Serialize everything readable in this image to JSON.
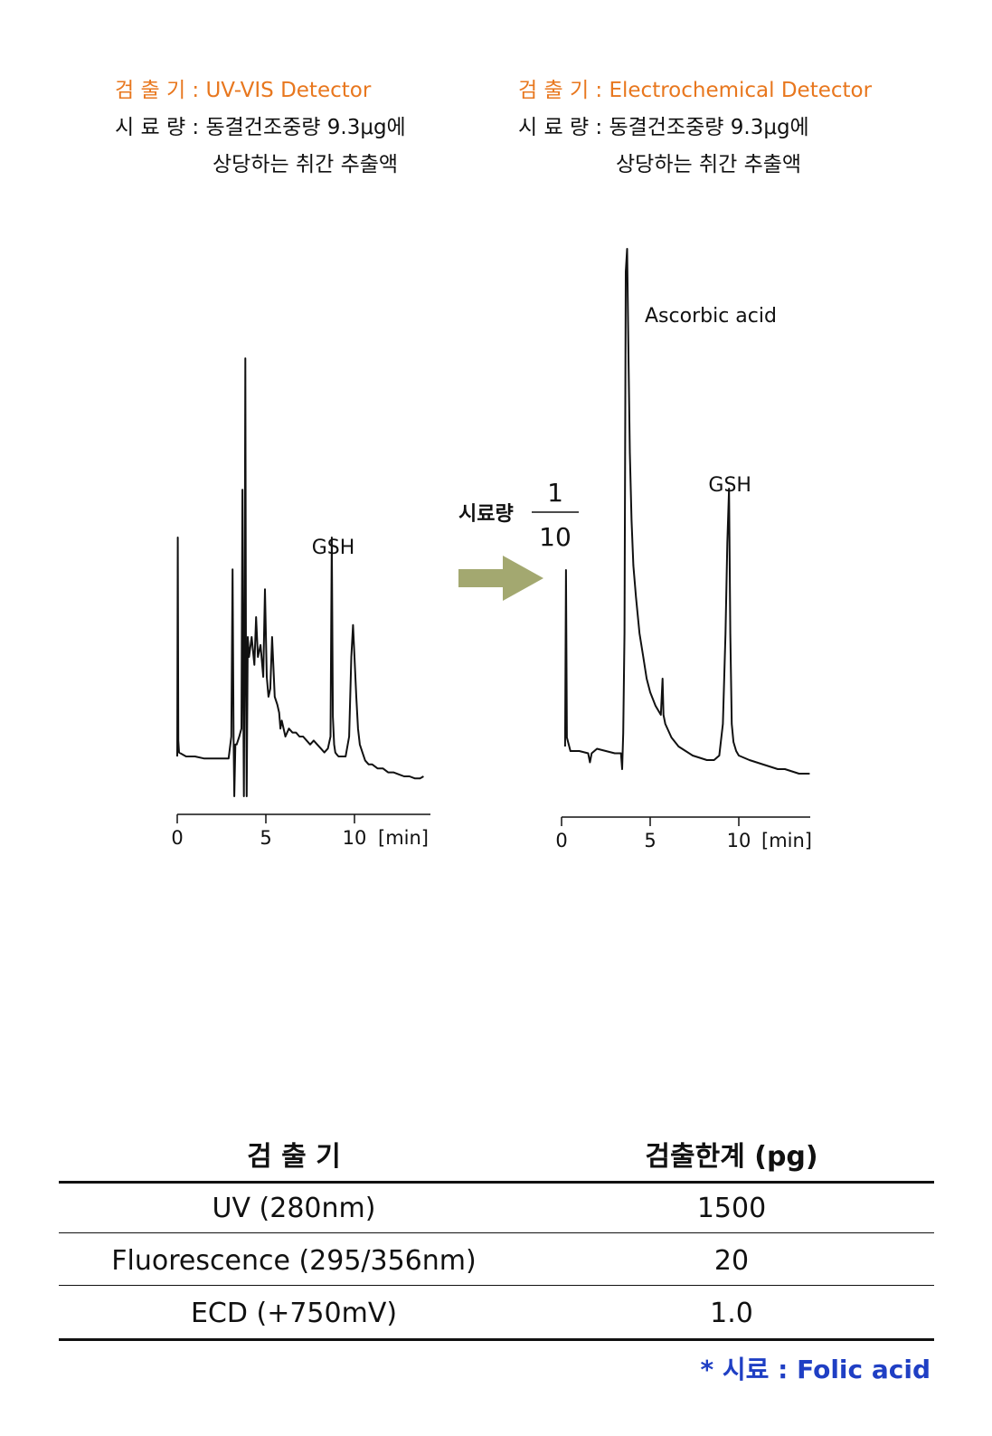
{
  "left_panel": {
    "detector_line": "검 출 기 : UV-VIS Detector",
    "sample_line1": "시 료 량 : 동결건조중량 9.3μg에",
    "sample_line2": "상당하는 취간 추출액"
  },
  "right_panel": {
    "detector_line": "검 출 기 : Electrochemical Detector",
    "sample_line1": "시 료 량 : 동결건조중량 9.3μg에",
    "sample_line2": "상당하는 취간 추출액"
  },
  "arrow_label": {
    "text": "시료량",
    "numerator": "1",
    "denominator": "10",
    "arrow_color": "#a3a870"
  },
  "chart_data": [
    {
      "type": "line",
      "detector": "UV-VIS Detector",
      "x_ticks": [
        "0",
        "5",
        "10"
      ],
      "x_unit": "[min]",
      "xlim": [
        0,
        14
      ],
      "annotations": [
        {
          "text": "GSH",
          "x": 8.8
        }
      ],
      "series": [
        {
          "x": [
            0.0,
            0.03,
            0.06,
            0.1,
            0.5,
            1,
            1.5,
            2,
            2.5,
            2.9,
            3.05,
            3.12,
            3.18,
            3.22,
            3.28,
            3.35,
            3.5,
            3.62,
            3.68,
            3.72,
            3.76,
            3.8,
            3.84,
            3.88,
            3.92,
            3.98,
            4.05,
            4.2,
            4.35,
            4.45,
            4.55,
            4.7,
            4.85,
            4.95,
            5.05,
            5.15,
            5.25,
            5.35,
            5.5,
            5.65,
            5.75,
            5.82,
            5.9,
            6.1,
            6.3,
            6.5,
            6.7,
            6.9,
            7.1,
            7.3,
            7.5,
            7.7,
            7.9,
            8.1,
            8.3,
            8.5,
            8.65,
            8.72,
            8.78,
            8.85,
            8.92,
            9.0,
            9.1,
            9.3,
            9.5,
            9.7,
            9.82,
            9.92,
            10.0,
            10.1,
            10.2,
            10.3,
            10.45,
            10.6,
            10.8,
            11,
            11.3,
            11.6,
            11.9,
            12.2,
            12.5,
            12.8,
            13.1,
            13.4,
            13.7,
            13.9
          ],
          "y": [
            0.05,
            0.6,
            0.09,
            0.06,
            0.05,
            0.05,
            0.045,
            0.045,
            0.045,
            0.045,
            0.1,
            0.52,
            0.1,
            -0.05,
            0.08,
            0.08,
            0.1,
            0.12,
            0.72,
            0.25,
            -0.05,
            0.35,
            1.05,
            0.3,
            -0.05,
            0.35,
            0.3,
            0.35,
            0.28,
            0.4,
            0.3,
            0.33,
            0.25,
            0.47,
            0.25,
            0.2,
            0.22,
            0.35,
            0.2,
            0.18,
            0.16,
            0.12,
            0.14,
            0.1,
            0.12,
            0.11,
            0.11,
            0.1,
            0.1,
            0.09,
            0.08,
            0.09,
            0.08,
            0.07,
            0.06,
            0.07,
            0.1,
            0.6,
            0.15,
            0.08,
            0.06,
            0.055,
            0.05,
            0.05,
            0.05,
            0.1,
            0.3,
            0.38,
            0.3,
            0.2,
            0.12,
            0.08,
            0.06,
            0.04,
            0.03,
            0.03,
            0.02,
            0.02,
            0.01,
            0.01,
            0.005,
            0.0,
            0.0,
            -0.005,
            -0.005,
            0.0
          ]
        }
      ]
    },
    {
      "type": "line",
      "detector": "Electrochemical Detector",
      "x_ticks": [
        "0",
        "5",
        "10"
      ],
      "x_unit": "[min]",
      "xlim": [
        0,
        14
      ],
      "annotations": [
        {
          "text": "Ascorbic acid",
          "x": 4.8
        },
        {
          "text": "GSH",
          "x": 9.5
        }
      ],
      "series": [
        {
          "x": [
            0.2,
            0.25,
            0.3,
            0.5,
            1,
            1.5,
            1.6,
            1.7,
            2,
            2.5,
            3,
            3.35,
            3.42,
            3.48,
            3.55,
            3.62,
            3.7,
            3.78,
            3.85,
            3.95,
            4.05,
            4.2,
            4.4,
            4.6,
            4.8,
            5,
            5.3,
            5.6,
            5.7,
            5.75,
            5.85,
            6.2,
            6.6,
            7,
            7.4,
            7.8,
            8.2,
            8.6,
            8.9,
            9.1,
            9.25,
            9.35,
            9.45,
            9.52,
            9.6,
            9.7,
            9.85,
            10,
            10.3,
            10.6,
            11,
            11.4,
            11.8,
            12.2,
            12.6,
            13,
            13.4,
            13.8,
            14
          ],
          "y": [
            0.05,
            0.44,
            0.07,
            0.04,
            0.04,
            0.035,
            0.015,
            0.035,
            0.045,
            0.04,
            0.035,
            0.035,
            0.0,
            0.08,
            0.3,
            1.1,
            1.15,
            0.9,
            0.7,
            0.55,
            0.45,
            0.38,
            0.3,
            0.25,
            0.2,
            0.17,
            0.14,
            0.12,
            0.2,
            0.12,
            0.1,
            0.07,
            0.05,
            0.04,
            0.03,
            0.025,
            0.02,
            0.02,
            0.03,
            0.1,
            0.3,
            0.5,
            0.62,
            0.3,
            0.1,
            0.06,
            0.04,
            0.03,
            0.025,
            0.02,
            0.015,
            0.01,
            0.005,
            0.0,
            0.0,
            -0.005,
            -0.01,
            -0.01,
            -0.01
          ]
        }
      ]
    }
  ],
  "table": {
    "headers": [
      "검 출 기",
      "검출한계 (pg)"
    ],
    "rows": [
      {
        "detector": "UV (280nm)",
        "limit": "1500"
      },
      {
        "detector": "Fluorescence (295/356nm)",
        "limit": "20"
      },
      {
        "detector": "ECD (+750mV)",
        "limit": "1.0"
      }
    ]
  },
  "footnote": "* 시료 : Folic acid"
}
